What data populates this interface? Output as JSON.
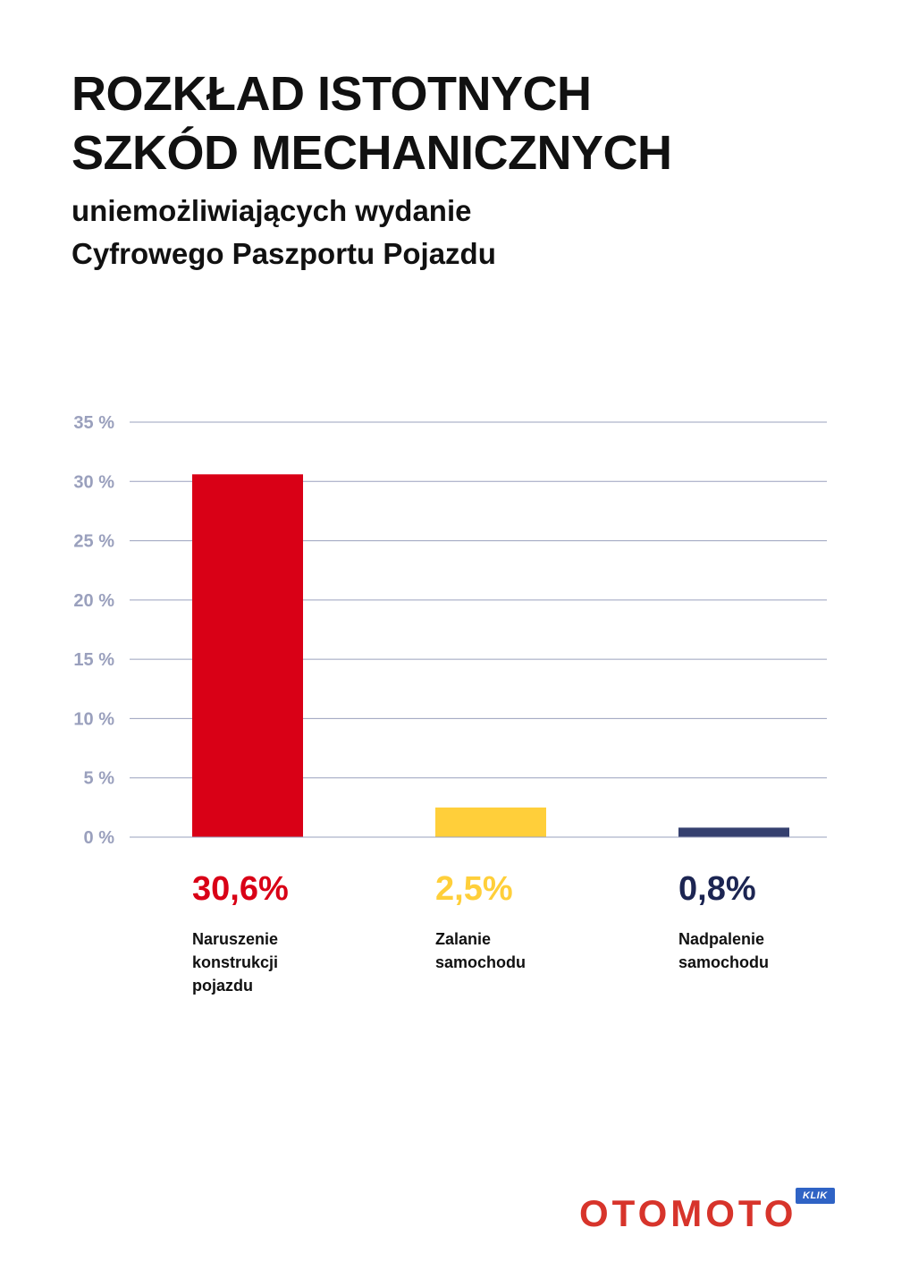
{
  "header": {
    "title_lines": [
      "ROZKŁAD ISTOTNYCH",
      "SZKÓD MECHANICZNYCH"
    ],
    "subtitle_lines": [
      "uniemożliwiających wydanie",
      "Cyfrowego Paszportu Pojazdu"
    ]
  },
  "chart_data": {
    "type": "bar",
    "title": "ROZKŁAD ISTOTNYCH SZKÓD MECHANICZNYCH",
    "subtitle": "uniemożliwiających wydanie Cyfrowego Paszportu Pojazdu",
    "categories": [
      "Naruszenie konstrukcji pojazdu",
      "Zalanie samochodu",
      "Nadpalenie samochodu"
    ],
    "category_lines": [
      [
        "Naruszenie",
        "konstrukcji",
        "pojazdu"
      ],
      [
        "Zalanie",
        "samochodu"
      ],
      [
        "Nadpalenie",
        "samochodu"
      ]
    ],
    "values": [
      30.6,
      2.5,
      0.8
    ],
    "value_labels": [
      "30,6%",
      "2,5%",
      "0,8%"
    ],
    "colors": [
      "#d90016",
      "#ffcf3a",
      "#35406f"
    ],
    "value_label_colors": [
      "#d90016",
      "#ffcf3a",
      "#1c2552"
    ],
    "ylim": [
      0,
      35
    ],
    "y_ticks": [
      0,
      5,
      10,
      15,
      20,
      25,
      30,
      35
    ],
    "y_tick_labels": [
      "0 %",
      "5 %",
      "10 %",
      "15 %",
      "20 %",
      "25 %",
      "30 %",
      "35 %"
    ],
    "grid": true,
    "gridline_color": "#9aa0bd",
    "xlabel": "",
    "ylabel": ""
  },
  "footer": {
    "logo_text": "OTOMOTO",
    "logo_badge": "KLIK",
    "logo_color": "#d7342b",
    "badge_color": "#2f63c5"
  }
}
